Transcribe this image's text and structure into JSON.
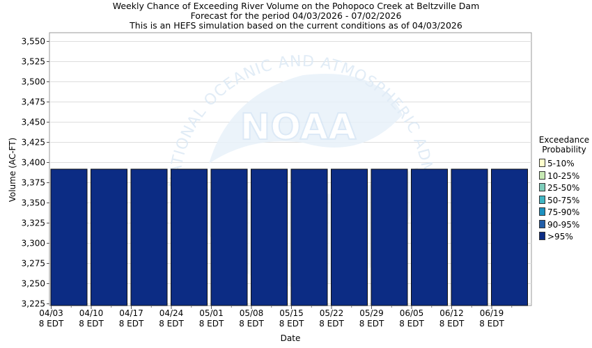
{
  "title_lines": [
    "Weekly Chance of Exceeding River Volume on the Pohopoco Creek at Beltzville Dam",
    "Forecast for the period 04/03/2026 - 07/02/2026",
    "This is an HEFS simulation based on the current conditions as of 04/03/2026"
  ],
  "watermark": {
    "logo_text": "NOAA",
    "ring_text": "NATIONAL OCEANIC AND ATMOSPHERIC ADMINISTRATION"
  },
  "legend": {
    "title_lines": [
      "Exceedance",
      "Probability"
    ],
    "items": [
      {
        "label": "5-10%",
        "color": "#ffffcc"
      },
      {
        "label": "10-25%",
        "color": "#c7e9b4"
      },
      {
        "label": "25-50%",
        "color": "#7fcdbb"
      },
      {
        "label": "50-75%",
        "color": "#41b6c4"
      },
      {
        "label": "75-90%",
        "color": "#1d91c0"
      },
      {
        "label": "90-95%",
        "color": "#225ea8"
      },
      {
        "label": ">95%",
        "color": "#0c2c84"
      }
    ]
  },
  "chart_data": {
    "type": "bar",
    "title": "Weekly Chance of Exceeding River Volume on the Pohopoco Creek at Beltzville Dam",
    "xlabel": "Date",
    "ylabel": "Volume (AC-FT)",
    "ylim": [
      3222,
      3560
    ],
    "yticks": [
      3225,
      3250,
      3275,
      3300,
      3325,
      3350,
      3375,
      3400,
      3425,
      3450,
      3475,
      3500,
      3525,
      3550
    ],
    "ytick_labels": [
      "3,225",
      "3,250",
      "3,275",
      "3,300",
      "3,325",
      "3,350",
      "3,375",
      "3,400",
      "3,425",
      "3,450",
      "3,475",
      "3,500",
      "3,525",
      "3,550"
    ],
    "categories": [
      "04/03",
      "04/10",
      "04/17",
      "04/24",
      "05/01",
      "05/08",
      "05/15",
      "05/22",
      "05/29",
      "06/05",
      "06/12",
      "06/19"
    ],
    "xtick_sublabel": "8 EDT",
    "series": [
      {
        "name": ">95%",
        "color": "#0c2c84",
        "values": [
          3391,
          3391,
          3391,
          3391,
          3391,
          3391,
          3391,
          3391,
          3391,
          3391,
          3391,
          3391
        ]
      }
    ],
    "bar_color": "#0c2c84",
    "grid": true,
    "legend_position": "right"
  }
}
